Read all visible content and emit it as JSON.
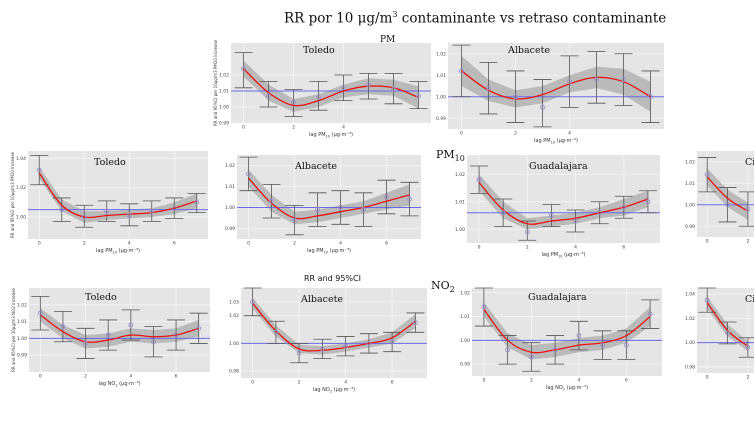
{
  "figure": {
    "title_prefix": "RR por 10 μg/m",
    "title_sup": "3",
    "title_suffix": " contaminante vs retraso contaminante",
    "top_partial": "PM",
    "pm10_label_base": "PM",
    "pm10_label_sub": "10",
    "no2_label_base": "NO",
    "no2_label_sub": "2",
    "rr_caption": "RR and 95%CI"
  },
  "colors": {
    "panel_bg": "#e5e5e5",
    "grid": "#f5f5f5",
    "ribbon": "#b3b3b3",
    "curve": "#e8130f",
    "reference": "#6a6ae6",
    "errorbar": "#555555",
    "point": "#9a8fd0"
  },
  "chart_data": [
    {
      "type": "line",
      "city": "Toledo",
      "ylim": [
        0.99,
        1.04
      ],
      "yticks": [
        "1.02",
        "1.01",
        "1.00",
        "0.99"
      ],
      "ytick_values": [
        1.02,
        1.01,
        1.0,
        0.99
      ],
      "x": [
        0,
        1,
        2,
        3,
        4,
        5,
        6,
        7
      ],
      "xticks": [
        "0",
        "2",
        "4"
      ],
      "xtick_values": [
        0,
        2,
        4
      ],
      "points": [
        1.024,
        1.007,
        1.003,
        1.006,
        1.012,
        1.014,
        1.011,
        1.007
      ],
      "lower": [
        1.012,
        1.0,
        0.994,
        0.998,
        1.004,
        1.005,
        1.002,
        0.999
      ],
      "upper": [
        1.034,
        1.016,
        1.011,
        1.016,
        1.02,
        1.021,
        1.021,
        1.016
      ],
      "curve": [
        1.024,
        1.009,
        1.001,
        1.004,
        1.01,
        1.013,
        1.012,
        1.006
      ],
      "ribbon_lo": [
        1.019,
        1.004,
        0.997,
        1.0,
        1.006,
        1.008,
        1.007,
        0.999
      ],
      "ribbon_hi": [
        1.029,
        1.014,
        1.005,
        1.008,
        1.014,
        1.018,
        1.017,
        1.013
      ],
      "ref": 1.01,
      "xlabel_base": "lag PM",
      "xlabel_sub": "10",
      "xlabel_unit": " (μg·m⁻³)",
      "ylabel": "RR and 95%CI per 10μg/m3 PM10 increase"
    },
    {
      "type": "line",
      "city": "Albacete",
      "ylim": [
        0.985,
        1.025
      ],
      "yticks": [
        "1.02",
        "1.01",
        "1.00",
        "0.99"
      ],
      "ytick_values": [
        1.02,
        1.01,
        1.0,
        0.99
      ],
      "x": [
        0,
        1,
        2,
        3,
        4,
        5,
        6,
        7
      ],
      "xticks": [
        "0",
        "2",
        "4"
      ],
      "xtick_values": [
        0,
        2,
        4
      ],
      "points": [
        1.012,
        1.004,
        1.0,
        0.995,
        1.007,
        1.008,
        1.008,
        1.0
      ],
      "lower": [
        1.0,
        0.992,
        0.988,
        0.986,
        0.995,
        0.997,
        0.996,
        0.988
      ],
      "upper": [
        1.024,
        1.016,
        1.012,
        1.008,
        1.019,
        1.021,
        1.02,
        1.012
      ],
      "curve": [
        1.012,
        1.003,
        0.999,
        1.001,
        1.006,
        1.009,
        1.007,
        1.0
      ],
      "ribbon_lo": [
        1.005,
        0.998,
        0.995,
        0.997,
        1.002,
        1.004,
        1.001,
        0.993
      ],
      "ribbon_hi": [
        1.019,
        1.008,
        1.003,
        1.005,
        1.01,
        1.014,
        1.013,
        1.007
      ],
      "ref": 1.0,
      "xlabel_base": "lag PM",
      "xlabel_sub": "10",
      "xlabel_unit": " (μg·m⁻³)",
      "ylabel": ""
    },
    {
      "type": "line",
      "city": "Toledo",
      "ylim": [
        0.985,
        1.045
      ],
      "yticks": [
        "1.04",
        "1.02",
        "1.00"
      ],
      "ytick_values": [
        1.04,
        1.02,
        1.0
      ],
      "x": [
        0,
        1,
        2,
        3,
        4,
        5,
        6,
        7
      ],
      "xticks": [
        "0",
        "2",
        "4",
        "6"
      ],
      "xtick_values": [
        0,
        2,
        4,
        6
      ],
      "points": [
        1.032,
        1.005,
        1.0,
        1.004,
        1.001,
        1.004,
        1.006,
        1.01
      ],
      "lower": [
        1.022,
        0.997,
        0.993,
        0.997,
        0.994,
        0.997,
        0.999,
        1.003
      ],
      "upper": [
        1.042,
        1.013,
        1.008,
        1.011,
        1.009,
        1.011,
        1.013,
        1.016
      ],
      "curve": [
        1.03,
        1.008,
        1.0,
        1.001,
        1.002,
        1.003,
        1.006,
        1.011
      ],
      "ribbon_lo": [
        1.026,
        1.004,
        0.996,
        0.998,
        0.999,
        1.0,
        1.002,
        1.006
      ],
      "ribbon_hi": [
        1.034,
        1.012,
        1.004,
        1.004,
        1.005,
        1.006,
        1.01,
        1.016
      ],
      "ref": 1.005,
      "xlabel_base": "lag PM",
      "xlabel_sub": "10",
      "xlabel_unit": " (μg·m⁻³)",
      "ylabel": "RR and 95%CI per 10μg/m3 PM10 increase"
    },
    {
      "type": "line",
      "city": "Albacete",
      "ylim": [
        0.985,
        1.025
      ],
      "yticks": [
        "1.02",
        "1.01",
        "1.00",
        "0.99"
      ],
      "ytick_values": [
        1.02,
        1.01,
        1.0,
        0.99
      ],
      "x": [
        0,
        1,
        2,
        3,
        4,
        5,
        6,
        7
      ],
      "xticks": [
        "0",
        "2",
        "4",
        "6"
      ],
      "xtick_values": [
        0,
        2,
        4,
        6
      ],
      "points": [
        1.016,
        1.003,
        0.994,
        0.999,
        1.0,
        0.999,
        1.005,
        1.004
      ],
      "lower": [
        1.008,
        0.995,
        0.987,
        0.991,
        0.992,
        0.991,
        0.997,
        0.996
      ],
      "upper": [
        1.024,
        1.011,
        1.001,
        1.007,
        1.008,
        1.007,
        1.013,
        1.012
      ],
      "curve": [
        1.014,
        1.002,
        0.995,
        0.996,
        0.998,
        1.0,
        1.003,
        1.006
      ],
      "ribbon_lo": [
        1.01,
        0.998,
        0.992,
        0.993,
        0.995,
        0.997,
        0.999,
        1.001
      ],
      "ribbon_hi": [
        1.018,
        1.006,
        0.998,
        0.999,
        1.001,
        1.003,
        1.007,
        1.011
      ],
      "ref": 1.0,
      "xlabel_base": "lag PM",
      "xlabel_sub": "10",
      "xlabel_unit": " (μg·m⁻³)",
      "ylabel": ""
    },
    {
      "type": "line",
      "city": "Guadalajara",
      "ylim": [
        0.995,
        1.027
      ],
      "yticks": [
        "1.02",
        "1.01",
        "1.00"
      ],
      "ytick_values": [
        1.02,
        1.01,
        1.0
      ],
      "x": [
        0,
        1,
        2,
        3,
        4,
        5,
        6,
        7
      ],
      "xticks": [
        "0",
        "2",
        "4",
        "6"
      ],
      "xtick_values": [
        0,
        2,
        4,
        6
      ],
      "points": [
        1.018,
        1.006,
        0.999,
        1.005,
        1.003,
        1.006,
        1.008,
        1.01
      ],
      "lower": [
        1.013,
        1.001,
        0.996,
        1.001,
        0.999,
        1.002,
        1.004,
        1.006
      ],
      "upper": [
        1.023,
        1.011,
        1.003,
        1.009,
        1.007,
        1.01,
        1.012,
        1.014
      ],
      "curve": [
        1.017,
        1.007,
        1.002,
        1.003,
        1.004,
        1.006,
        1.008,
        1.011
      ],
      "ribbon_lo": [
        1.014,
        1.004,
        1.0,
        1.001,
        1.002,
        1.004,
        1.005,
        1.008
      ],
      "ribbon_hi": [
        1.02,
        1.01,
        1.004,
        1.005,
        1.006,
        1.008,
        1.011,
        1.014
      ],
      "ref": 1.006,
      "xlabel_base": "lag PM",
      "xlabel_sub": "10",
      "xlabel_unit": " (μg·m⁻³)",
      "ylabel": ""
    },
    {
      "type": "line",
      "city": "Ciuda",
      "ylim": [
        0.985,
        1.025
      ],
      "yticks": [
        "1.02",
        "1.01",
        "1.00",
        "0.99"
      ],
      "ytick_values": [
        1.02,
        1.01,
        1.0,
        0.99
      ],
      "x": [
        0,
        1,
        2
      ],
      "xticks": [
        "0",
        "2"
      ],
      "xtick_values": [
        0,
        2
      ],
      "points": [
        1.014,
        1.0,
        0.998
      ],
      "lower": [
        1.006,
        0.992,
        0.99
      ],
      "upper": [
        1.022,
        1.008,
        1.006
      ],
      "curve": [
        1.013,
        1.003,
        0.997
      ],
      "ribbon_lo": [
        1.009,
        0.999,
        0.993
      ],
      "ribbon_hi": [
        1.017,
        1.007,
        1.001
      ],
      "ref": 1.0,
      "xlabel_base": "",
      "xlabel_sub": "",
      "xlabel_unit": "",
      "ylabel": ""
    },
    {
      "type": "line",
      "city": "Toledo",
      "ylim": [
        0.98,
        1.03
      ],
      "yticks": [
        "1.02",
        "1.01",
        "1.00",
        "0.99"
      ],
      "ytick_values": [
        1.02,
        1.01,
        1.0,
        0.99
      ],
      "x": [
        0,
        1,
        2,
        3,
        4,
        5,
        6,
        7
      ],
      "xticks": [
        "0",
        "2",
        "4",
        "6"
      ],
      "xtick_values": [
        0,
        2,
        4,
        6
      ],
      "points": [
        1.015,
        1.007,
        0.997,
        1.002,
        1.008,
        0.998,
        1.002,
        1.006
      ],
      "lower": [
        1.005,
        0.998,
        0.988,
        0.993,
        0.999,
        0.989,
        0.993,
        0.997
      ],
      "upper": [
        1.025,
        1.016,
        1.006,
        1.011,
        1.017,
        1.007,
        1.011,
        1.015
      ],
      "curve": [
        1.014,
        1.004,
        0.998,
        0.999,
        1.002,
        1.001,
        1.002,
        1.006
      ],
      "ribbon_lo": [
        1.01,
        1.0,
        0.994,
        0.995,
        0.998,
        0.997,
        0.998,
        1.001
      ],
      "ribbon_hi": [
        1.018,
        1.008,
        1.002,
        1.003,
        1.006,
        1.005,
        1.006,
        1.011
      ],
      "ref": 1.0,
      "xlabel_base": "lag NO",
      "xlabel_sub": "2",
      "xlabel_unit": " (μg·m⁻³)",
      "ylabel": "RR and 95%CI per 10μg/m3 NO2 increase"
    },
    {
      "type": "line",
      "city": "Albacete",
      "ylim": [
        0.975,
        1.04
      ],
      "yticks": [
        "1.03",
        "1.02",
        "1.00",
        "0.98"
      ],
      "ytick_values": [
        1.03,
        1.02,
        1.0,
        0.98
      ],
      "x": [
        0,
        1,
        2,
        3,
        4,
        5,
        6,
        7
      ],
      "xticks": [
        "0",
        "2",
        "4",
        "6"
      ],
      "xtick_values": [
        0,
        2,
        4,
        6
      ],
      "points": [
        1.03,
        1.008,
        0.993,
        0.996,
        0.998,
        1.0,
        1.001,
        1.015
      ],
      "lower": [
        1.02,
        1.0,
        0.986,
        0.989,
        0.991,
        0.993,
        0.994,
        1.008
      ],
      "upper": [
        1.04,
        1.016,
        1.0,
        1.003,
        1.005,
        1.007,
        1.008,
        1.022
      ],
      "curve": [
        1.029,
        1.009,
        0.996,
        0.995,
        0.997,
        1.0,
        1.004,
        1.016
      ],
      "ribbon_lo": [
        1.025,
        1.005,
        0.993,
        0.992,
        0.994,
        0.997,
        1.0,
        1.011
      ],
      "ribbon_hi": [
        1.033,
        1.013,
        0.999,
        0.998,
        1.0,
        1.003,
        1.008,
        1.021
      ],
      "ref": 1.0,
      "xlabel_base": "lag NO",
      "xlabel_sub": "2",
      "xlabel_unit": " (μg·m⁻³)",
      "ylabel": ""
    },
    {
      "type": "line",
      "city": "Guadalajara",
      "ylim": [
        0.985,
        1.022
      ],
      "yticks": [
        "1.02",
        "1.01",
        "1.00",
        "0.99"
      ],
      "ytick_values": [
        1.02,
        1.01,
        1.0,
        0.99
      ],
      "x": [
        0,
        1,
        2,
        3,
        4,
        5,
        6,
        7
      ],
      "xticks": [
        "0",
        "2",
        "4",
        "6"
      ],
      "xtick_values": [
        0,
        2,
        4,
        6
      ],
      "points": [
        1.014,
        0.996,
        0.993,
        0.996,
        1.002,
        0.998,
        0.998,
        1.011
      ],
      "lower": [
        1.006,
        0.99,
        0.987,
        0.99,
        0.996,
        0.992,
        0.992,
        1.005
      ],
      "upper": [
        1.022,
        1.002,
        0.999,
        1.002,
        1.008,
        1.004,
        1.004,
        1.017
      ],
      "curve": [
        1.013,
        1.0,
        0.995,
        0.996,
        0.998,
        0.999,
        1.002,
        1.01
      ],
      "ribbon_lo": [
        1.01,
        0.997,
        0.992,
        0.993,
        0.995,
        0.996,
        0.999,
        1.006
      ],
      "ribbon_hi": [
        1.016,
        1.003,
        0.998,
        0.999,
        1.001,
        1.002,
        1.005,
        1.014
      ],
      "ref": 1.0,
      "xlabel_base": "lag NO",
      "xlabel_sub": "2",
      "xlabel_unit": " (μg·m⁻³)",
      "ylabel": ""
    },
    {
      "type": "line",
      "city": "Ciuda",
      "ylim": [
        0.975,
        1.045
      ],
      "yticks": [
        "1.04",
        "1.02",
        "1.00",
        "0.98"
      ],
      "ytick_values": [
        1.04,
        1.02,
        1.0,
        0.98
      ],
      "x": [
        0,
        1,
        2
      ],
      "xticks": [
        "0",
        "2"
      ],
      "xtick_values": [
        0,
        2
      ],
      "points": [
        1.035,
        1.008,
        0.996
      ],
      "lower": [
        1.025,
        0.999,
        0.988
      ],
      "upper": [
        1.045,
        1.017,
        1.004
      ],
      "curve": [
        1.033,
        1.01,
        0.997
      ],
      "ribbon_lo": [
        1.028,
        1.005,
        0.993
      ],
      "ribbon_hi": [
        1.038,
        1.015,
        1.001
      ],
      "ref": 1.0,
      "xlabel_base": "",
      "xlabel_sub": "",
      "xlabel_unit": "",
      "ylabel": ""
    }
  ]
}
